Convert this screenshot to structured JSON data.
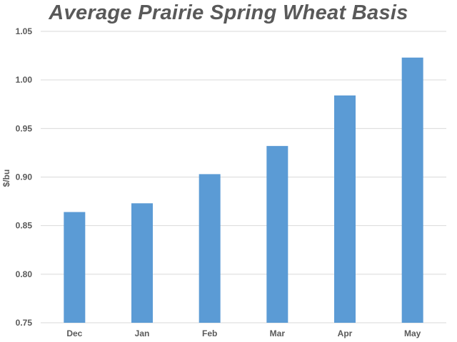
{
  "chart_data": {
    "type": "bar",
    "title": "Average Prairie Spring Wheat Basis",
    "xlabel": "",
    "ylabel": "$/bu",
    "categories": [
      "Dec",
      "Jan",
      "Feb",
      "Mar",
      "Apr",
      "May"
    ],
    "values": [
      0.864,
      0.873,
      0.903,
      0.932,
      0.984,
      1.023
    ],
    "ylim": [
      0.75,
      1.05
    ],
    "yticks": [
      "0.75",
      "0.80",
      "0.85",
      "0.90",
      "0.95",
      "1.00",
      "1.05"
    ],
    "grid": true,
    "legend": "none",
    "colors": {
      "bar": "#5B9BD5",
      "grid": "#D9D9D9",
      "text": "#595959"
    }
  }
}
